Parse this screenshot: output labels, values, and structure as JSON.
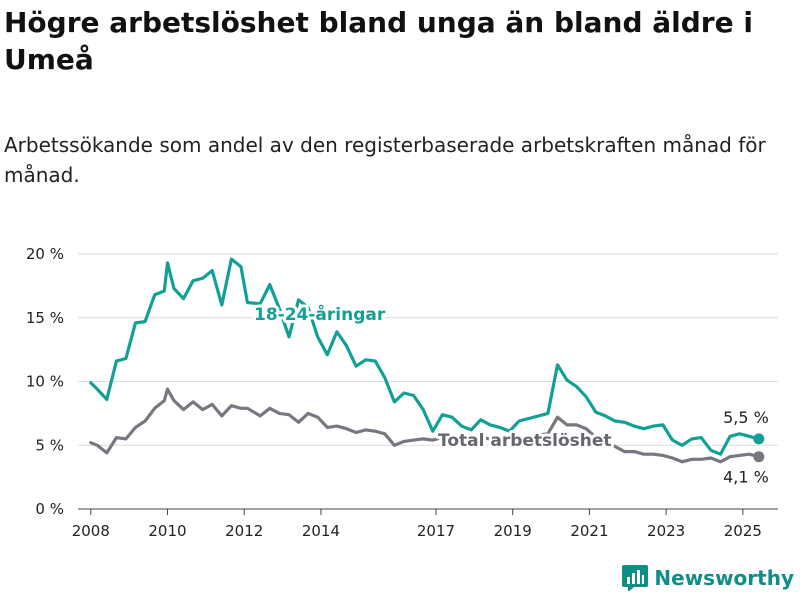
{
  "title": "Högre arbetslöshet bland unga än bland äldre i Umeå",
  "subtitle": "Arbetssökande som andel av den registerbaserade arbetskraften månad för månad.",
  "brand": "Newsworthy",
  "colors": {
    "youth": "#12a096",
    "total": "#77777f",
    "grid": "#dddddd",
    "brand": "#0e8e86"
  },
  "chart_data": {
    "type": "line",
    "xlim": [
      "2007-09",
      "2025-12"
    ],
    "ylim": [
      0,
      20
    ],
    "y_ticks": [
      0,
      5,
      10,
      15,
      20
    ],
    "y_tick_labels": [
      "0 %",
      "5 %",
      "10 %",
      "15 %",
      "20 %"
    ],
    "x_ticks": [
      "2008-01",
      "2010-01",
      "2012-01",
      "2014-01",
      "2017-01",
      "2019-01",
      "2021-01",
      "2023-01",
      "2025-01"
    ],
    "x_tick_labels": [
      "2008",
      "2010",
      "2012",
      "2014",
      "2017",
      "2019",
      "2021",
      "2023",
      "2025"
    ],
    "grid": "horizontal",
    "series": [
      {
        "name": "18-24-åringar",
        "end_label": "5,5 %",
        "x": [
          "2008-01",
          "2008-03",
          "2008-06",
          "2008-09",
          "2008-12",
          "2009-03",
          "2009-06",
          "2009-09",
          "2009-12",
          "2010-01",
          "2010-03",
          "2010-06",
          "2010-09",
          "2010-12",
          "2011-03",
          "2011-06",
          "2011-09",
          "2011-12",
          "2012-02",
          "2012-06",
          "2012-09",
          "2012-12",
          "2013-03",
          "2013-06",
          "2013-09",
          "2013-12",
          "2014-03",
          "2014-06",
          "2014-09",
          "2014-12",
          "2015-03",
          "2015-06",
          "2015-09",
          "2015-12",
          "2016-03",
          "2016-06",
          "2016-09",
          "2016-12",
          "2017-03",
          "2017-06",
          "2017-09",
          "2017-12",
          "2018-03",
          "2018-06",
          "2018-09",
          "2018-12",
          "2019-03",
          "2019-06",
          "2019-09",
          "2019-12",
          "2020-03",
          "2020-06",
          "2020-09",
          "2020-12",
          "2021-03",
          "2021-06",
          "2021-09",
          "2021-12",
          "2022-03",
          "2022-06",
          "2022-09",
          "2022-12",
          "2023-03",
          "2023-06",
          "2023-09",
          "2023-12",
          "2024-03",
          "2024-06",
          "2024-09",
          "2024-12",
          "2025-03",
          "2025-06"
        ],
        "y": [
          9.9,
          9.4,
          8.6,
          11.6,
          11.8,
          14.6,
          14.7,
          16.8,
          17.1,
          19.3,
          17.3,
          16.5,
          17.9,
          18.1,
          18.7,
          16.0,
          19.6,
          19.0,
          16.2,
          16.1,
          17.6,
          15.7,
          13.5,
          16.4,
          15.8,
          13.5,
          12.1,
          13.9,
          12.8,
          11.2,
          11.7,
          11.6,
          10.3,
          8.4,
          9.1,
          8.9,
          7.8,
          6.1,
          7.4,
          7.2,
          6.5,
          6.2,
          7.0,
          6.6,
          6.4,
          6.1,
          6.9,
          7.1,
          7.3,
          7.5,
          11.3,
          10.1,
          9.6,
          8.8,
          7.6,
          7.3,
          6.9,
          6.8,
          6.5,
          6.3,
          6.5,
          6.6,
          5.4,
          5.0,
          5.5,
          5.6,
          4.6,
          4.3,
          5.7,
          5.9,
          5.7,
          5.5
        ]
      },
      {
        "name": "Total arbetslöshet",
        "end_label": "4,1 %",
        "x": [
          "2008-01",
          "2008-03",
          "2008-06",
          "2008-09",
          "2008-12",
          "2009-03",
          "2009-06",
          "2009-09",
          "2009-12",
          "2010-01",
          "2010-03",
          "2010-06",
          "2010-09",
          "2010-12",
          "2011-03",
          "2011-06",
          "2011-09",
          "2011-12",
          "2012-02",
          "2012-06",
          "2012-09",
          "2012-12",
          "2013-03",
          "2013-06",
          "2013-09",
          "2013-12",
          "2014-03",
          "2014-06",
          "2014-09",
          "2014-12",
          "2015-03",
          "2015-06",
          "2015-09",
          "2015-12",
          "2016-03",
          "2016-06",
          "2016-09",
          "2016-12",
          "2017-03",
          "2017-06",
          "2017-09",
          "2017-12",
          "2018-03",
          "2018-06",
          "2018-09",
          "2018-12",
          "2019-03",
          "2019-06",
          "2019-09",
          "2019-12",
          "2020-03",
          "2020-06",
          "2020-09",
          "2020-12",
          "2021-03",
          "2021-06",
          "2021-09",
          "2021-12",
          "2022-03",
          "2022-06",
          "2022-09",
          "2022-12",
          "2023-03",
          "2023-06",
          "2023-09",
          "2023-12",
          "2024-03",
          "2024-06",
          "2024-09",
          "2024-12",
          "2025-03",
          "2025-06"
        ],
        "y": [
          5.2,
          5.0,
          4.4,
          5.6,
          5.5,
          6.4,
          6.9,
          7.9,
          8.5,
          9.4,
          8.5,
          7.8,
          8.4,
          7.8,
          8.2,
          7.3,
          8.1,
          7.9,
          7.9,
          7.3,
          7.9,
          7.5,
          7.4,
          6.8,
          7.5,
          7.2,
          6.4,
          6.5,
          6.3,
          6.0,
          6.2,
          6.1,
          5.9,
          5.0,
          5.3,
          5.4,
          5.5,
          5.4,
          5.6,
          5.5,
          5.3,
          5.2,
          5.6,
          5.5,
          5.4,
          5.3,
          5.6,
          5.7,
          5.8,
          5.9,
          7.2,
          6.6,
          6.6,
          6.3,
          5.6,
          5.3,
          4.9,
          4.5,
          4.5,
          4.3,
          4.3,
          4.2,
          4.0,
          3.7,
          3.9,
          3.9,
          4.0,
          3.7,
          4.1,
          4.2,
          4.3,
          4.1
        ]
      }
    ]
  }
}
